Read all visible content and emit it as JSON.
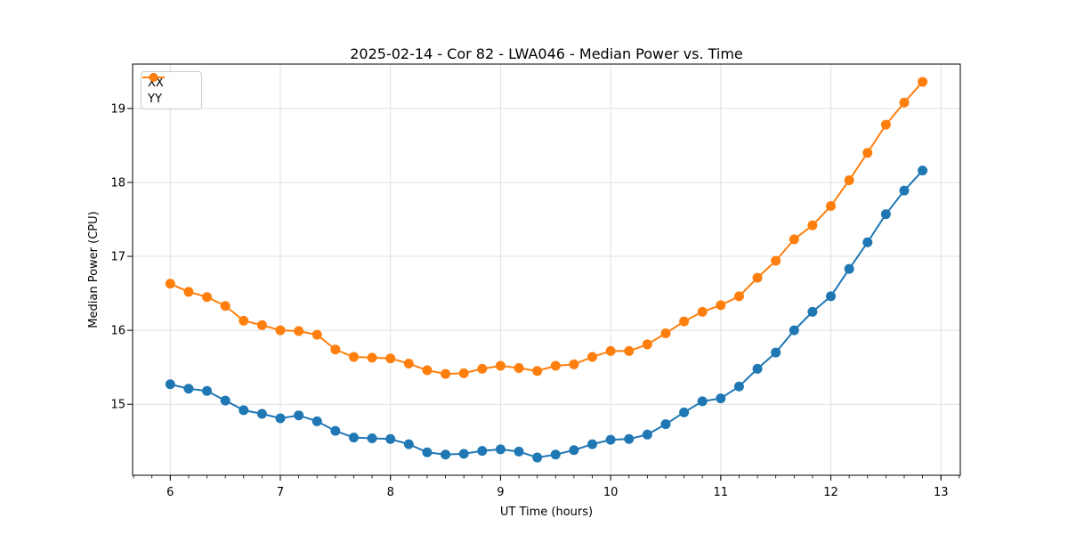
{
  "figure": {
    "title": "2025-02-14 - Cor 82 - LWA046 - Median Power vs. Time"
  },
  "chart_data": {
    "type": "line",
    "title": "2025-02-14 - Cor 82 - LWA046 - Median Power vs. Time",
    "xlabel": "UT Time (hours)",
    "ylabel": "Median Power (CPU)",
    "xlim": [
      5.658,
      13.176
    ],
    "ylim": [
      14.04,
      19.6
    ],
    "xticks": [
      6,
      7,
      8,
      9,
      10,
      11,
      12,
      13
    ],
    "yticks": [
      15,
      16,
      17,
      18,
      19
    ],
    "x_minor_step": 0.166667,
    "grid": true,
    "grid_color": "#e0e0e0",
    "legend_position": "upper left",
    "x": [
      6.0,
      6.1667,
      6.3333,
      6.5,
      6.6667,
      6.8333,
      7.0,
      7.1667,
      7.3333,
      7.5,
      7.6667,
      7.8333,
      8.0,
      8.1667,
      8.3333,
      8.5,
      8.6667,
      8.8333,
      9.0,
      9.1667,
      9.3333,
      9.5,
      9.6667,
      9.8333,
      10.0,
      10.1667,
      10.3333,
      10.5,
      10.6667,
      10.8333,
      11.0,
      11.1667,
      11.3333,
      11.5,
      11.6667,
      11.8333,
      12.0,
      12.1667,
      12.3333,
      12.5,
      12.6667,
      12.8333
    ],
    "series": [
      {
        "name": "XX",
        "color": "#1f77b4",
        "values": [
          15.27,
          15.21,
          15.18,
          15.05,
          14.92,
          14.87,
          14.81,
          14.85,
          14.77,
          14.64,
          14.55,
          14.54,
          14.53,
          14.46,
          14.35,
          14.32,
          14.33,
          14.37,
          14.39,
          14.36,
          14.28,
          14.32,
          14.38,
          14.46,
          14.52,
          14.53,
          14.59,
          14.73,
          14.89,
          15.04,
          15.08,
          15.24,
          15.48,
          15.7,
          16.0,
          16.25,
          16.46,
          16.83,
          17.19,
          17.57,
          17.89,
          18.16
        ]
      },
      {
        "name": "YY",
        "color": "#ff7f0e",
        "values": [
          16.63,
          16.52,
          16.45,
          16.33,
          16.13,
          16.07,
          16.0,
          15.99,
          15.94,
          15.74,
          15.64,
          15.63,
          15.62,
          15.55,
          15.46,
          15.41,
          15.42,
          15.48,
          15.52,
          15.49,
          15.45,
          15.52,
          15.54,
          15.64,
          15.72,
          15.72,
          15.81,
          15.96,
          16.12,
          16.25,
          16.34,
          16.46,
          16.71,
          16.94,
          17.23,
          17.42,
          17.68,
          18.03,
          18.4,
          18.78,
          19.08,
          19.36
        ]
      }
    ]
  }
}
